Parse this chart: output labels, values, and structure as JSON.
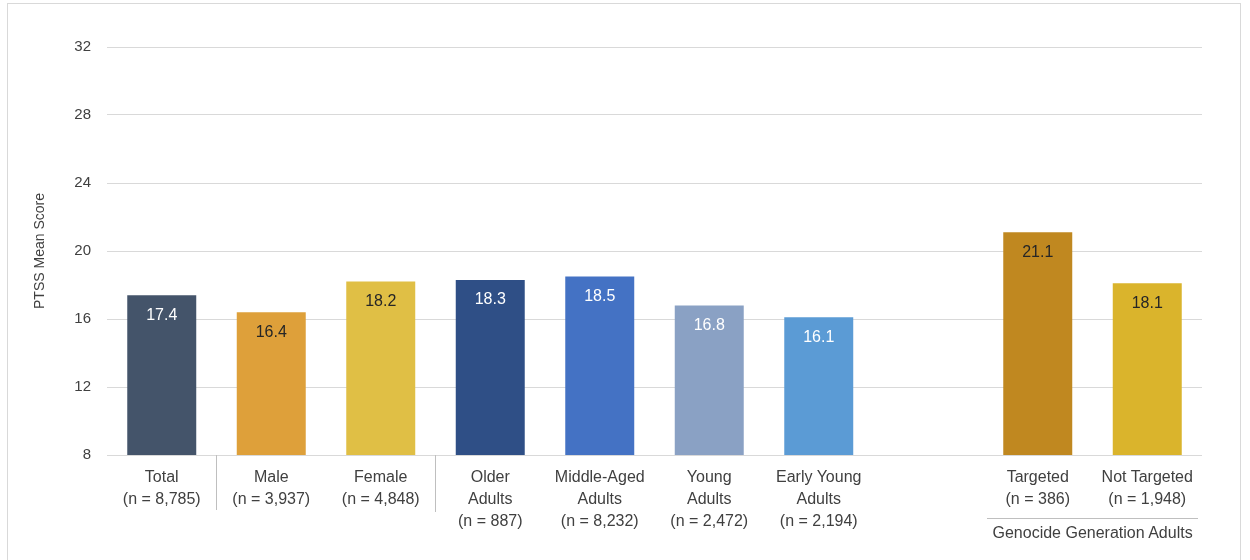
{
  "chart_data": {
    "type": "bar",
    "ylabel": "PTSS Mean Score",
    "categories": [
      "Total\n(n = 8,785)",
      "Male\n(n = 3,937)",
      "Female\n(n = 4,848)",
      "Older\nAdults\n(n = 887)",
      "Middle-Aged\nAdults\n(n = 8,232)",
      "Young\nAdults\n(n = 2,472)",
      "Early Young\nAdults\n(n = 2,194)",
      null,
      "Targeted\n(n = 386)",
      "Not Targeted\n(n = 1,948)"
    ],
    "values": [
      17.4,
      16.4,
      18.2,
      18.3,
      18.5,
      16.8,
      16.1,
      null,
      21.1,
      18.1
    ],
    "colors": [
      "#44546a",
      "#dea03a",
      "#e0bf45",
      "#2f4f86",
      "#4472c4",
      "#8aa1c4",
      "#5b9bd5",
      null,
      "#c08820",
      "#dab42c"
    ],
    "ylim": [
      8,
      32
    ],
    "yticks": [
      8,
      12,
      16,
      20,
      24,
      28,
      32
    ],
    "grid": "y",
    "data_labels": true,
    "annotations": [
      "Genocide Generation Adults"
    ]
  }
}
